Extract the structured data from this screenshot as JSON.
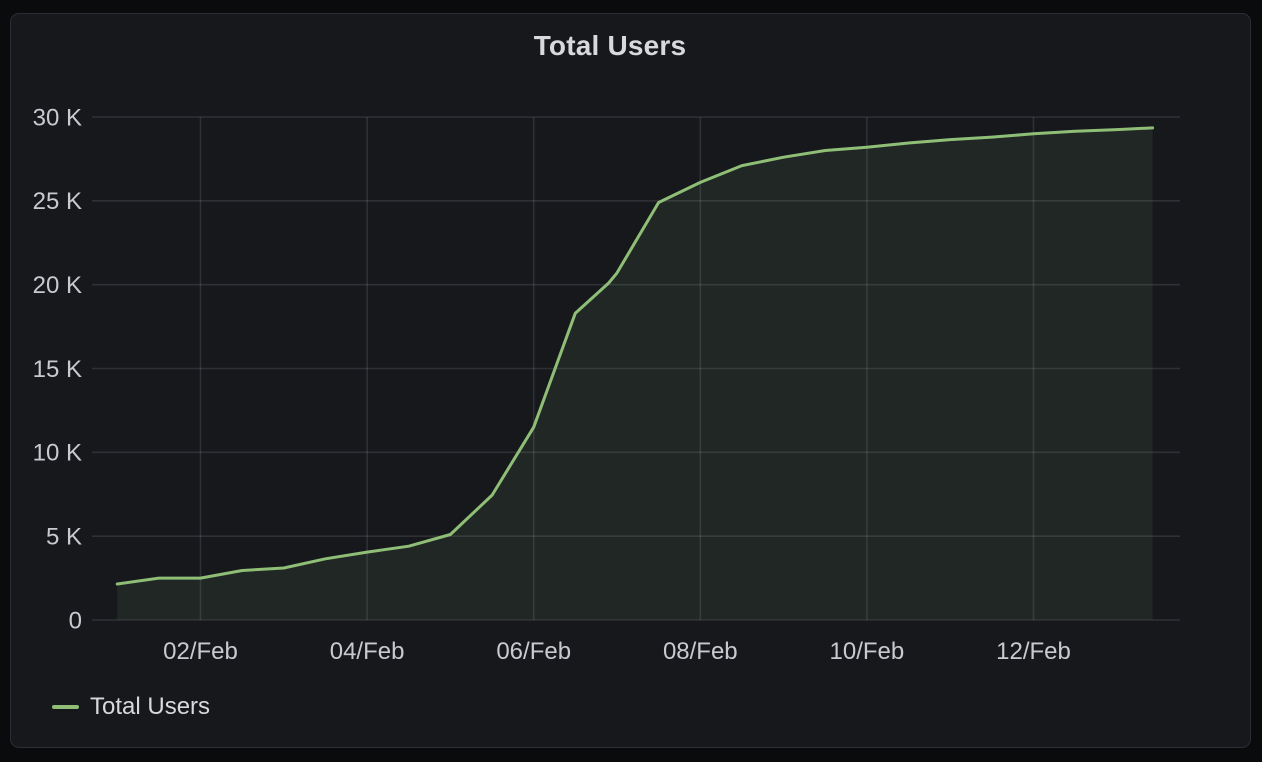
{
  "panel": {
    "title": "Total Users",
    "legend": {
      "items": [
        {
          "label": "Total Users",
          "color": "#8fbe77"
        }
      ]
    }
  },
  "colors": {
    "page_background": "#0a0b0d",
    "panel_background": "#17181c",
    "panel_border": "#2a2d32",
    "gridline": "rgba(204,214,235,0.13)",
    "tick_text": "#c8cad0",
    "title_text": "#d8d9da",
    "series_line": "#8fbe77",
    "series_fill": "rgba(143,190,119,0.095)"
  },
  "chart_data": {
    "type": "area",
    "title": "Total Users",
    "x_unit": "day of February",
    "x_range": [
      0.7,
      13.75
    ],
    "y_range": [
      0,
      30000
    ],
    "grid": true,
    "legend_position": "bottom-left",
    "x_ticks": [
      {
        "day": 2,
        "label": "02/Feb"
      },
      {
        "day": 4,
        "label": "04/Feb"
      },
      {
        "day": 6,
        "label": "06/Feb"
      },
      {
        "day": 8,
        "label": "08/Feb"
      },
      {
        "day": 10,
        "label": "10/Feb"
      },
      {
        "day": 12,
        "label": "12/Feb"
      }
    ],
    "y_ticks": [
      {
        "value": 0,
        "label": "0"
      },
      {
        "value": 5000,
        "label": "5 K"
      },
      {
        "value": 10000,
        "label": "10 K"
      },
      {
        "value": 15000,
        "label": "15 K"
      },
      {
        "value": 20000,
        "label": "20 K"
      },
      {
        "value": 25000,
        "label": "25 K"
      },
      {
        "value": 30000,
        "label": "30 K"
      }
    ],
    "series": [
      {
        "name": "Total Users",
        "color": "#8fbe77",
        "points": [
          [
            1.0,
            2150
          ],
          [
            1.5,
            2500
          ],
          [
            2.0,
            2500
          ],
          [
            2.5,
            2950
          ],
          [
            3.0,
            3100
          ],
          [
            3.5,
            3650
          ],
          [
            4.0,
            4050
          ],
          [
            4.5,
            4400
          ],
          [
            5.0,
            5100
          ],
          [
            5.5,
            7450
          ],
          [
            6.0,
            11500
          ],
          [
            6.5,
            18300
          ],
          [
            6.9,
            20100
          ],
          [
            7.0,
            20700
          ],
          [
            7.5,
            24900
          ],
          [
            8.0,
            26100
          ],
          [
            8.5,
            27100
          ],
          [
            9.0,
            27600
          ],
          [
            9.5,
            28000
          ],
          [
            10.0,
            28200
          ],
          [
            10.5,
            28450
          ],
          [
            11.0,
            28650
          ],
          [
            11.5,
            28800
          ],
          [
            12.0,
            29000
          ],
          [
            12.5,
            29150
          ],
          [
            13.0,
            29250
          ],
          [
            13.43,
            29350
          ]
        ]
      }
    ]
  }
}
